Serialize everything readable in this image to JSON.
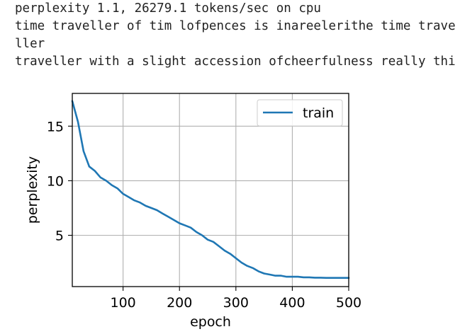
{
  "log_lines": [
    "perplexity 1.1, 26279.1 tokens/sec on cpu",
    "time traveller of tim lofpences is inareelerithe time trave",
    "ller",
    "traveller with a slight accession ofcheerfulness really thi"
  ],
  "chart_data": {
    "type": "line",
    "title": "",
    "xlabel": "epoch",
    "ylabel": "perplexity",
    "xlim": [
      10,
      500
    ],
    "ylim": [
      0.3,
      18.0
    ],
    "xticks": [
      100,
      200,
      300,
      400,
      500
    ],
    "yticks": [
      5,
      10,
      15
    ],
    "grid": true,
    "legend_position": "top-right",
    "series": [
      {
        "name": "train",
        "color": "#1f77b4",
        "x": [
          10,
          20,
          30,
          40,
          50,
          60,
          70,
          80,
          90,
          100,
          110,
          120,
          130,
          140,
          150,
          160,
          170,
          180,
          190,
          200,
          210,
          220,
          230,
          240,
          250,
          260,
          270,
          280,
          290,
          300,
          310,
          320,
          330,
          340,
          350,
          360,
          370,
          380,
          390,
          400,
          410,
          420,
          430,
          440,
          450,
          460,
          470,
          480,
          490,
          500
        ],
        "values": [
          17.3,
          15.4,
          12.7,
          11.3,
          10.9,
          10.3,
          10.0,
          9.6,
          9.3,
          8.8,
          8.5,
          8.2,
          8.0,
          7.7,
          7.5,
          7.3,
          7.0,
          6.7,
          6.4,
          6.1,
          5.9,
          5.7,
          5.3,
          5.0,
          4.6,
          4.4,
          4.0,
          3.6,
          3.3,
          2.9,
          2.5,
          2.2,
          2.0,
          1.7,
          1.5,
          1.4,
          1.3,
          1.3,
          1.2,
          1.2,
          1.2,
          1.15,
          1.15,
          1.12,
          1.12,
          1.1,
          1.1,
          1.1,
          1.1,
          1.1
        ]
      }
    ]
  }
}
